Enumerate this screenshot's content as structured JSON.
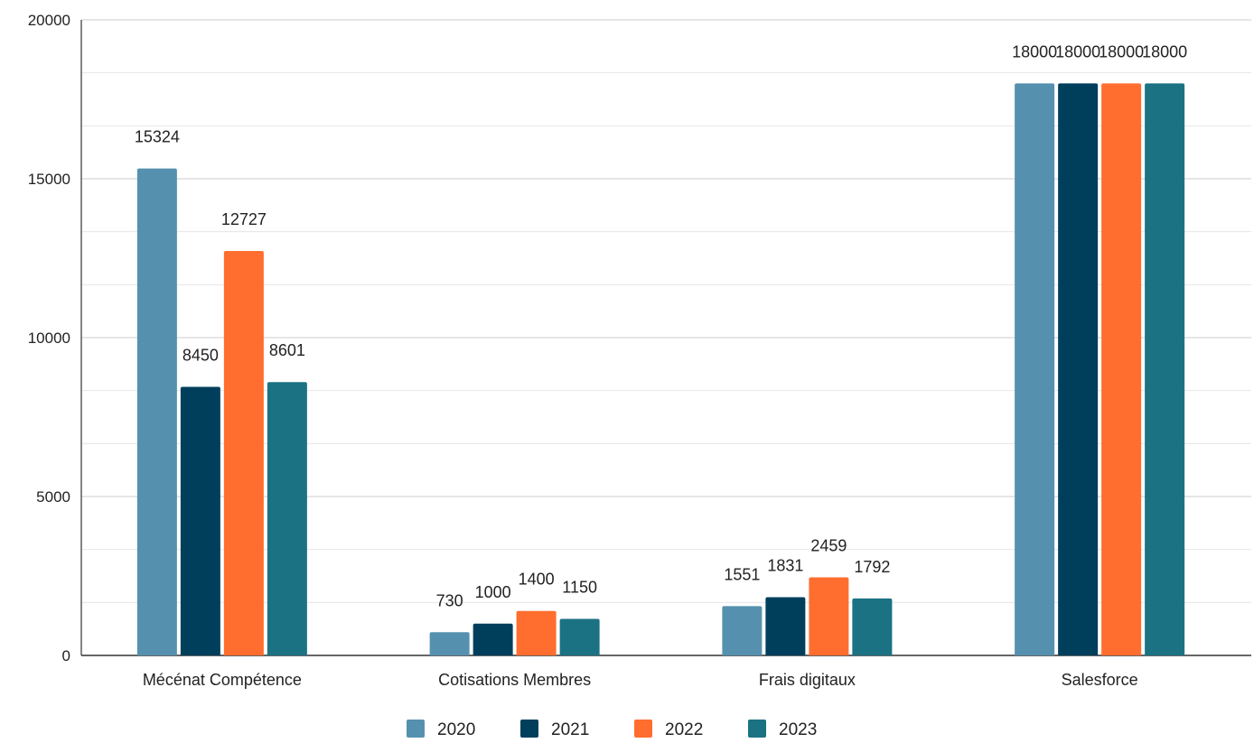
{
  "chart_data": {
    "type": "bar",
    "title": "",
    "xlabel": "",
    "ylabel": "",
    "categories": [
      "Mécénat Compétence",
      "Cotisations Membres",
      "Frais digitaux",
      "Salesforce"
    ],
    "series": [
      {
        "name": "2020",
        "color": "#5591AE",
        "values": [
          15324,
          730,
          1551,
          18000
        ]
      },
      {
        "name": "2021",
        "color": "#003F5C",
        "values": [
          8450,
          1000,
          1831,
          18000
        ]
      },
      {
        "name": "2022",
        "color": "#FF6E2E",
        "values": [
          12727,
          1400,
          2459,
          18000
        ]
      },
      {
        "name": "2023",
        "color": "#1B7283",
        "values": [
          8601,
          1150,
          1792,
          18000
        ]
      }
    ],
    "ylim": [
      0,
      20000
    ],
    "yticks": [
      0,
      5000,
      10000,
      15000,
      20000
    ],
    "ytick_labels": [
      "0",
      "5000",
      "10000",
      "15000",
      "20000"
    ],
    "grid": true,
    "data_labels": true,
    "legend": "bottom",
    "colors": {
      "grid_major": "#cccccc",
      "grid_minor": "#e6e6e6",
      "axis": "#333333",
      "text": "#222222"
    }
  }
}
